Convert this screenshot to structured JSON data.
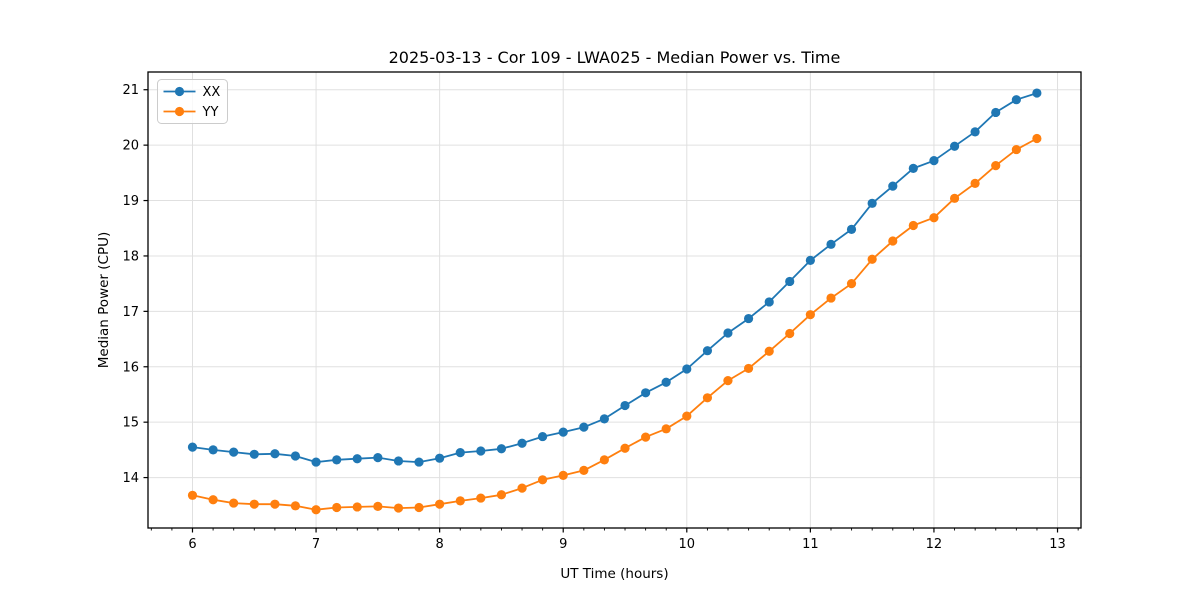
{
  "chart_data": {
    "type": "line",
    "title": "2025-03-13 - Cor 109 - LWA025 - Median Power vs. Time",
    "xlabel": "UT Time (hours)",
    "ylabel": "Median Power (CPU)",
    "xlim": [
      5.64,
      13.19
    ],
    "ylim": [
      13.09,
      21.32
    ],
    "x_ticks": [
      6,
      7,
      8,
      9,
      10,
      11,
      12,
      13
    ],
    "y_ticks": [
      14,
      15,
      16,
      17,
      18,
      19,
      20,
      21
    ],
    "x_minor_tick_step": 0.16667,
    "grid": true,
    "legend_position": "upper-left",
    "marker": "circle",
    "x": [
      6.0,
      6.167,
      6.333,
      6.5,
      6.667,
      6.833,
      7.0,
      7.167,
      7.333,
      7.5,
      7.667,
      7.833,
      8.0,
      8.167,
      8.333,
      8.5,
      8.667,
      8.833,
      9.0,
      9.167,
      9.333,
      9.5,
      9.667,
      9.833,
      10.0,
      10.167,
      10.333,
      10.5,
      10.667,
      10.833,
      11.0,
      11.167,
      11.333,
      11.5,
      11.667,
      11.833,
      12.0,
      12.167,
      12.333,
      12.5,
      12.667,
      12.833
    ],
    "series": [
      {
        "name": "XX",
        "color": "#1f77b4",
        "values": [
          14.55,
          14.5,
          14.46,
          14.42,
          14.43,
          14.39,
          14.28,
          14.32,
          14.34,
          14.36,
          14.3,
          14.28,
          14.35,
          14.45,
          14.48,
          14.52,
          14.62,
          14.74,
          14.82,
          14.91,
          15.06,
          15.3,
          15.53,
          15.72,
          15.96,
          16.29,
          16.61,
          16.87,
          17.17,
          17.54,
          17.92,
          18.21,
          18.48,
          18.95,
          19.26,
          19.58,
          19.72,
          19.98,
          20.24,
          20.59,
          20.82,
          20.94
        ]
      },
      {
        "name": "YY",
        "color": "#ff7f0e",
        "values": [
          13.68,
          13.6,
          13.54,
          13.52,
          13.52,
          13.49,
          13.42,
          13.46,
          13.47,
          13.48,
          13.45,
          13.46,
          13.52,
          13.58,
          13.63,
          13.69,
          13.81,
          13.96,
          14.04,
          14.13,
          14.32,
          14.53,
          14.73,
          14.88,
          15.11,
          15.44,
          15.75,
          15.97,
          16.28,
          16.6,
          16.94,
          17.24,
          17.5,
          17.94,
          18.27,
          18.55,
          18.69,
          19.04,
          19.31,
          19.63,
          19.92,
          20.12
        ]
      }
    ],
    "style": {
      "grid_color": "#e0e0e0",
      "spine_color": "#000000",
      "background": "#ffffff",
      "line_width": 1.8,
      "marker_radius": 4.6
    }
  }
}
